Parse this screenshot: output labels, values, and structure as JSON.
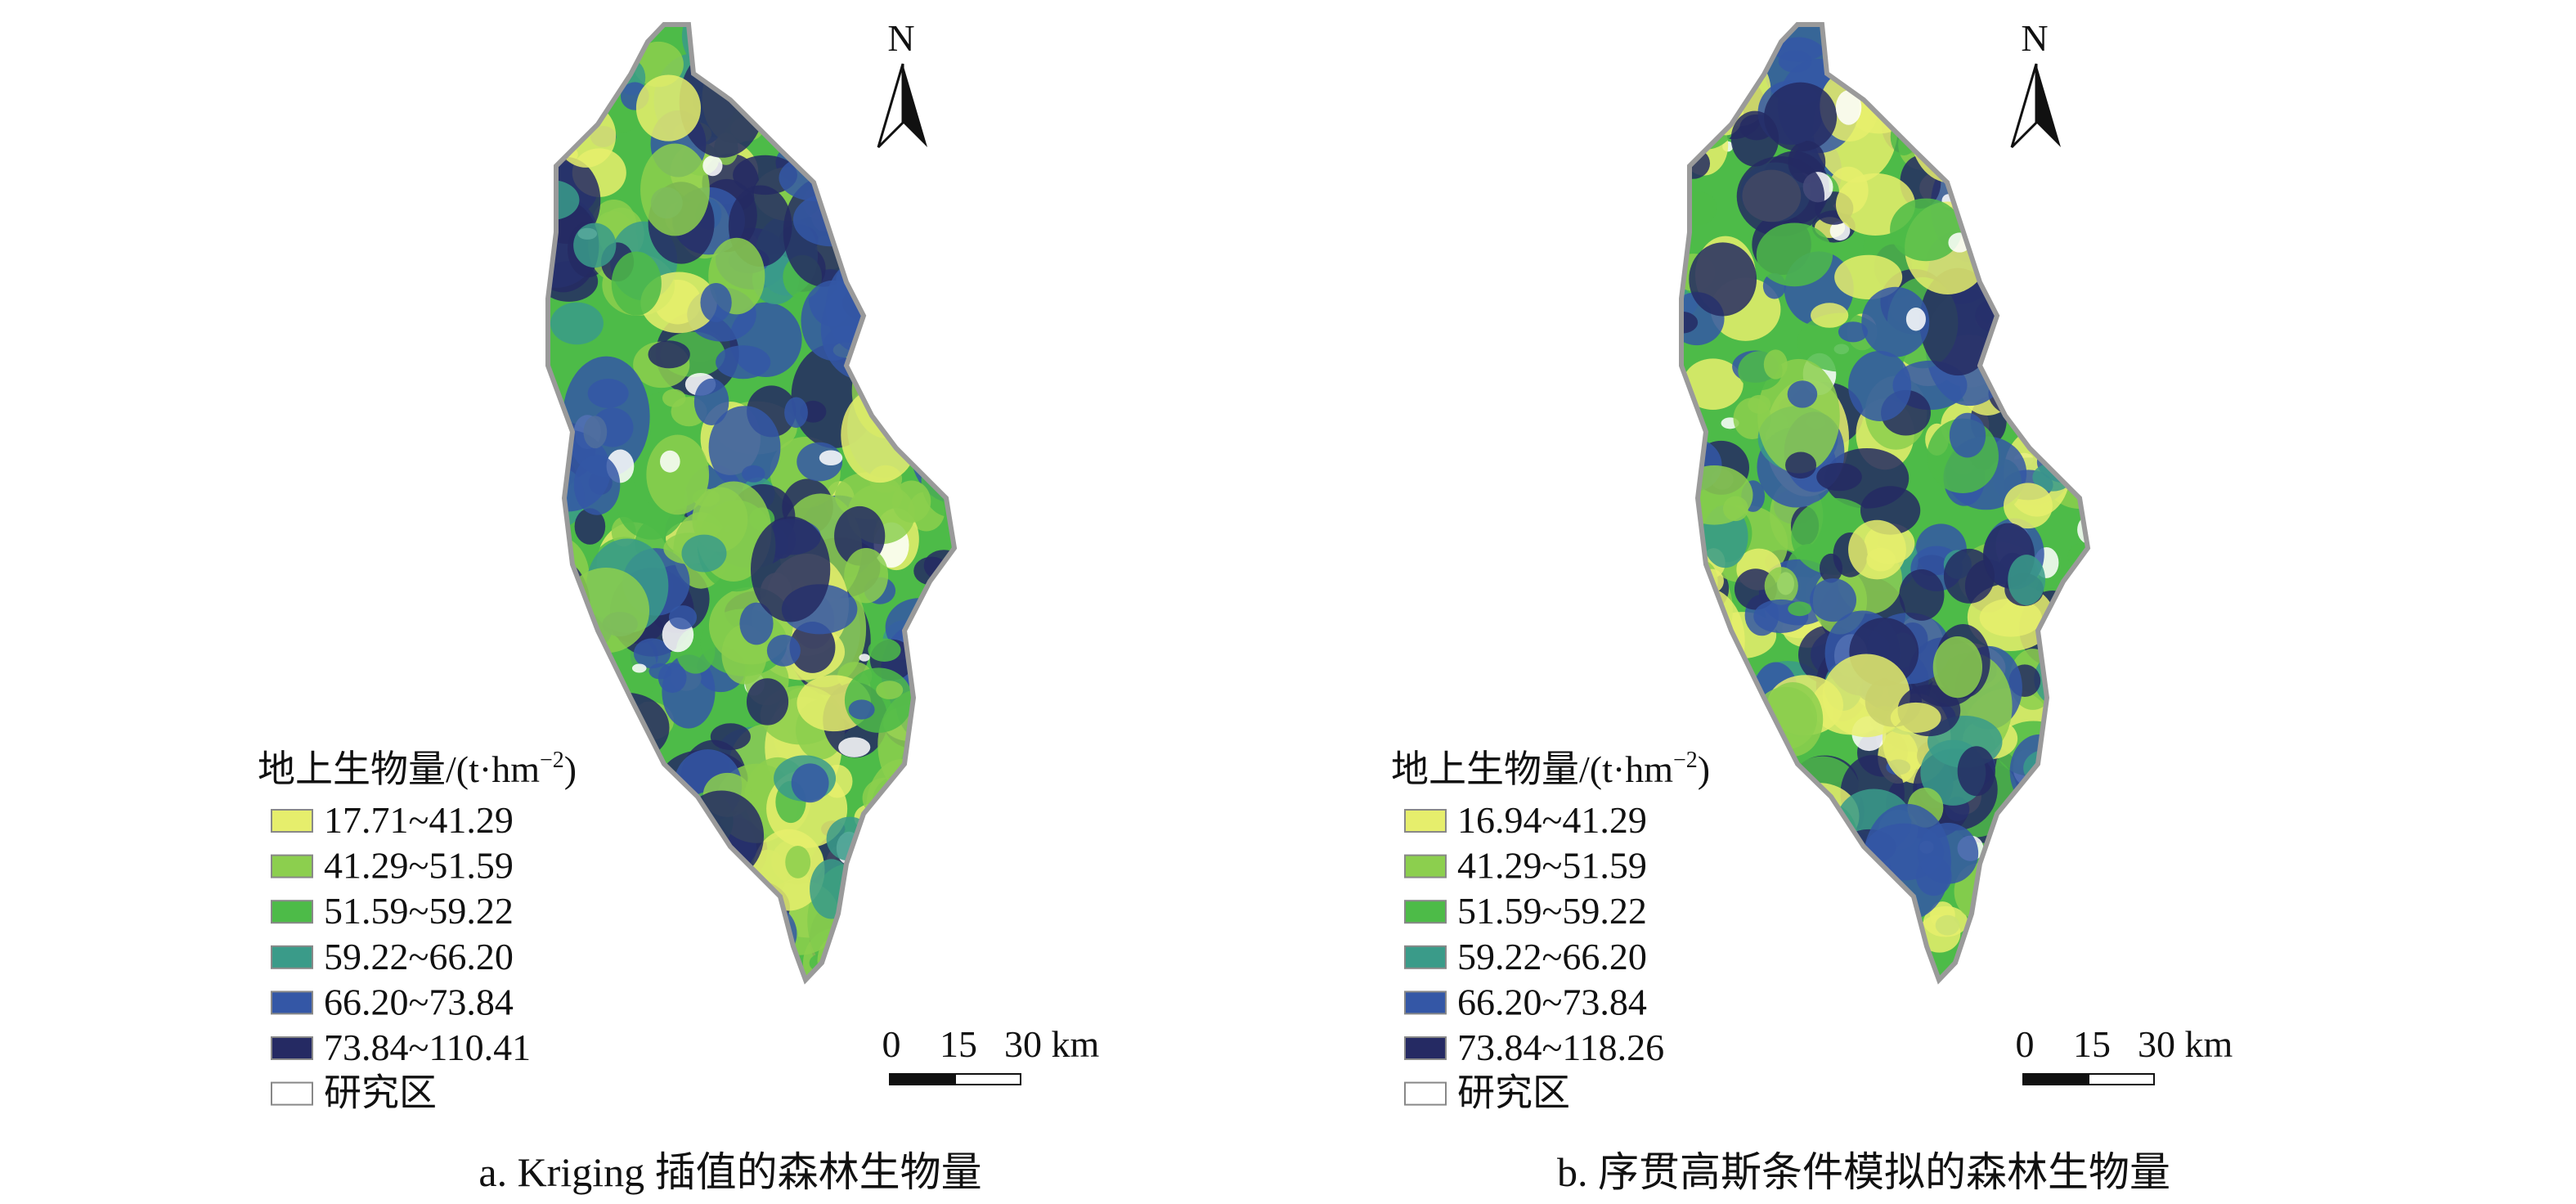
{
  "panels": [
    {
      "north": "N",
      "legend": {
        "title": {
          "main": "地上生物量/(t·hm",
          "sup": "−2",
          "end": ")"
        },
        "items": [
          "17.71~41.29",
          "41.29~51.59",
          "51.59~59.22",
          "59.22~66.20",
          "66.20~73.84",
          "73.84~110.41",
          "研究区"
        ],
        "colors": [
          "#e6ee6c",
          "#8ccf4e",
          "#4dbb48",
          "#3a9b89",
          "#3457a6",
          "#252a63",
          "#ffffff"
        ]
      },
      "scale_bar": {
        "labels": [
          "0",
          "15",
          "30 km"
        ]
      },
      "caption": "a. Kriging 插值的森林生物量"
    },
    {
      "north": "N",
      "legend": {
        "title": {
          "main": "地上生物量/(t·hm",
          "sup": "−2",
          "end": ")"
        },
        "items": [
          "16.94~41.29",
          "41.29~51.59",
          "51.59~59.22",
          "59.22~66.20",
          "66.20~73.84",
          "73.84~118.26",
          "研究区"
        ],
        "colors": [
          "#e6ee6c",
          "#8ccf4e",
          "#4dbb48",
          "#3a9b89",
          "#3457a6",
          "#252a63",
          "#ffffff"
        ]
      },
      "scale_bar": {
        "labels": [
          "0",
          "15",
          "30 km"
        ]
      },
      "caption": "b. 序贯高斯条件模拟的森林生物量"
    }
  ]
}
